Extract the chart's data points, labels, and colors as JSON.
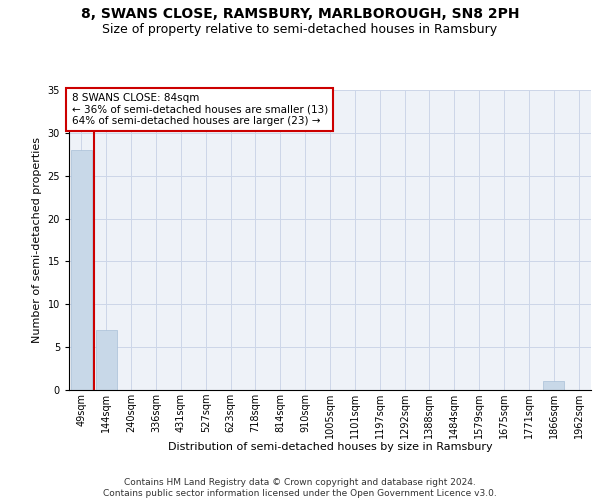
{
  "title": "8, SWANS CLOSE, RAMSBURY, MARLBOROUGH, SN8 2PH",
  "subtitle": "Size of property relative to semi-detached houses in Ramsbury",
  "xlabel": "Distribution of semi-detached houses by size in Ramsbury",
  "ylabel": "Number of semi-detached properties",
  "categories": [
    "49sqm",
    "144sqm",
    "240sqm",
    "336sqm",
    "431sqm",
    "527sqm",
    "623sqm",
    "718sqm",
    "814sqm",
    "910sqm",
    "1005sqm",
    "1101sqm",
    "1197sqm",
    "1292sqm",
    "1388sqm",
    "1484sqm",
    "1579sqm",
    "1675sqm",
    "1771sqm",
    "1866sqm",
    "1962sqm"
  ],
  "values": [
    28,
    7,
    0,
    0,
    0,
    0,
    0,
    0,
    0,
    0,
    0,
    0,
    0,
    0,
    0,
    0,
    0,
    0,
    0,
    1,
    0
  ],
  "bar_color": "#c8d8e8",
  "bar_edge_color": "#a8c0d8",
  "subject_label": "8 SWANS CLOSE: 84sqm",
  "pct_smaller": 36,
  "count_smaller": 13,
  "pct_larger": 64,
  "count_larger": 23,
  "annotation_box_color": "#ffffff",
  "annotation_box_edge": "#cc0000",
  "vline_color": "#cc0000",
  "ylim": [
    0,
    35
  ],
  "yticks": [
    0,
    5,
    10,
    15,
    20,
    25,
    30,
    35
  ],
  "grid_color": "#ccd6e8",
  "background_color": "#eef2f8",
  "title_fontsize": 10,
  "subtitle_fontsize": 9,
  "axis_label_fontsize": 8,
  "tick_fontsize": 7,
  "ann_fontsize": 7.5,
  "footer_text": "Contains HM Land Registry data © Crown copyright and database right 2024.\nContains public sector information licensed under the Open Government Licence v3.0.",
  "footer_fontsize": 6.5
}
